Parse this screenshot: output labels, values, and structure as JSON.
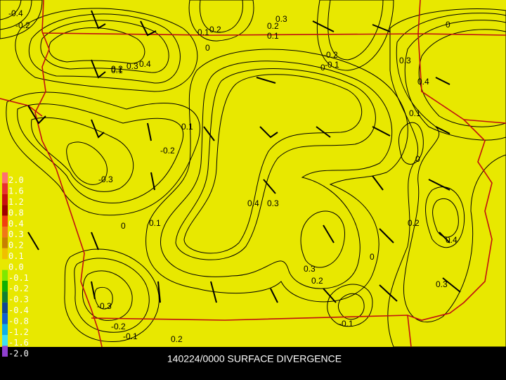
{
  "title": "140224/0000 SURFACE DIVERGENCE",
  "legend": [
    {
      "label": "2.0",
      "color": "#ff7070"
    },
    {
      "label": "1.6",
      "color": "#e83030"
    },
    {
      "label": "1.2",
      "color": "#c81010"
    },
    {
      "label": "0.8",
      "color": "#a00000"
    },
    {
      "label": "0.4",
      "color": "#f04010"
    },
    {
      "label": "0.3",
      "color": "#f07818"
    },
    {
      "label": "0.2",
      "color": "#c88000"
    },
    {
      "label": "0.1",
      "color": "#f0c000"
    },
    {
      "label": "0.0",
      "color": "#e8e800"
    },
    {
      "label": "-0.1",
      "color": "#80e800"
    },
    {
      "label": "-0.2",
      "color": "#10b000"
    },
    {
      "label": "-0.3",
      "color": "#108030"
    },
    {
      "label": "-0.4",
      "color": "#104890"
    },
    {
      "label": "-0.8",
      "color": "#1060d0"
    },
    {
      "label": "-1.2",
      "color": "#10b0e8"
    },
    {
      "label": "-1.6",
      "color": "#40e0f0"
    },
    {
      "label": "-2.0",
      "color": "#9040d0"
    }
  ],
  "contour_labels": [
    "-0.4",
    "-0.2",
    "0.2",
    "0.1",
    "0",
    "0.3",
    "0.2",
    "0.1",
    "-0.2",
    "-0.1",
    "0",
    "0",
    "0.3",
    "0.4",
    "0.1",
    "0",
    "0.4",
    "0.3",
    "0.2",
    "0.1",
    "0.1",
    "-0.2",
    "-0.3",
    "0",
    "0.1",
    "0.4",
    "0.3",
    "0.2",
    "0.4",
    "0",
    "0.3",
    "0.2",
    "0.3",
    "-0.3",
    "-0.2",
    "-0.1",
    "-0.1",
    "0.2"
  ]
}
